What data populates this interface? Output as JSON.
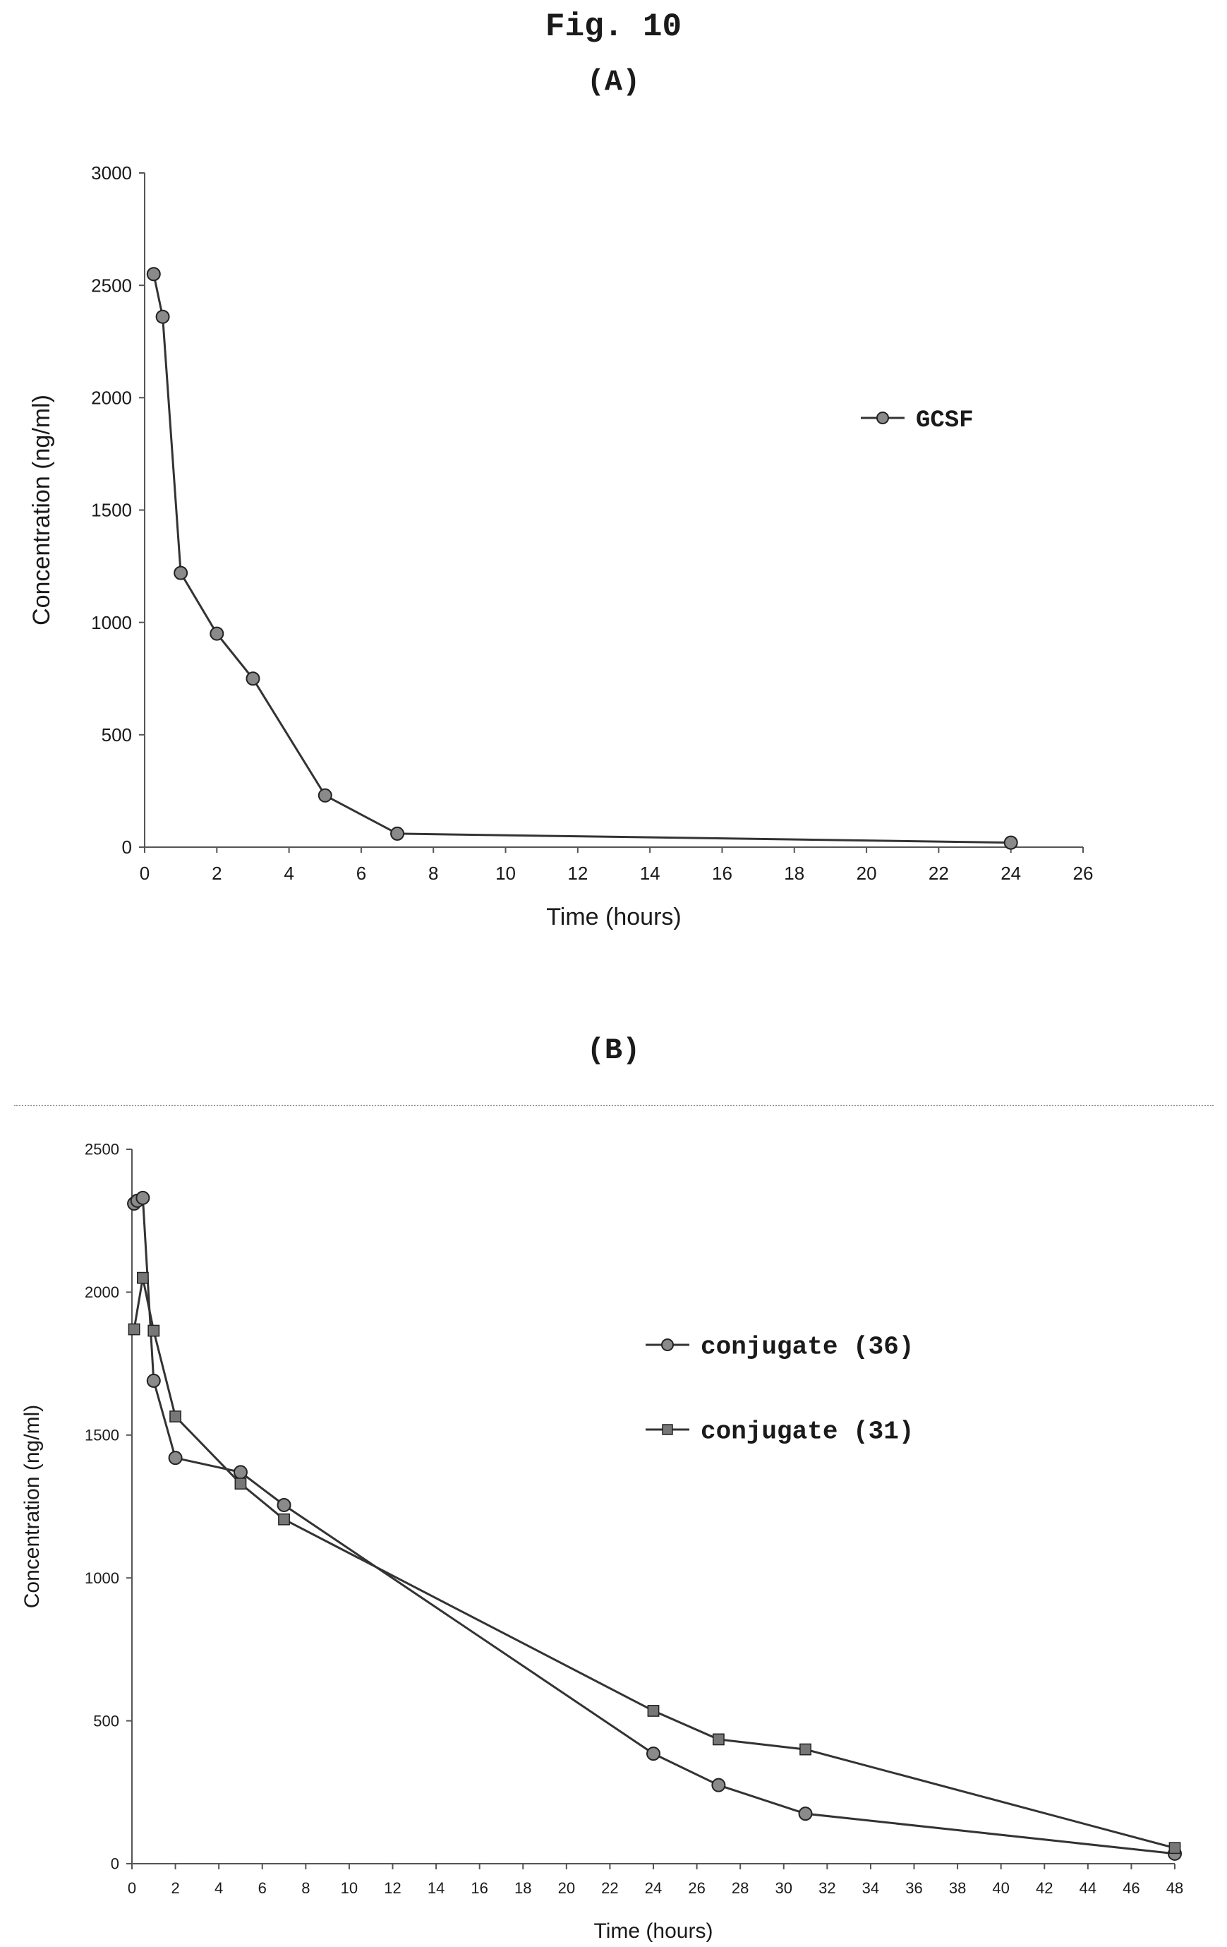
{
  "figure": {
    "title": "Fig. 10"
  },
  "chart_data": [
    {
      "panel": "(A)",
      "type": "line",
      "xlabel": "Time (hours)",
      "ylabel": "Concentration (ng/ml)",
      "xlim": [
        0,
        26
      ],
      "ylim": [
        0,
        3000
      ],
      "xticks": [
        0,
        2,
        4,
        6,
        8,
        10,
        12,
        14,
        16,
        18,
        20,
        22,
        24,
        26
      ],
      "yticks": [
        0,
        500,
        1000,
        1500,
        2000,
        2500,
        3000
      ],
      "legend_position": "right",
      "series": [
        {
          "name": "GCSF",
          "marker": "circle",
          "color": "#333333",
          "x": [
            0.25,
            0.5,
            1,
            2,
            3,
            5,
            7,
            24
          ],
          "y": [
            2550,
            2360,
            1220,
            950,
            750,
            230,
            60,
            20
          ]
        }
      ]
    },
    {
      "panel": "(B)",
      "type": "line",
      "xlabel": "Time (hours)",
      "ylabel": "Concentration (ng/ml)",
      "xlim": [
        0,
        48
      ],
      "ylim": [
        0,
        2500
      ],
      "xticks": [
        0,
        2,
        4,
        6,
        8,
        10,
        12,
        14,
        16,
        18,
        20,
        22,
        24,
        26,
        28,
        30,
        32,
        34,
        36,
        38,
        40,
        42,
        44,
        46,
        48
      ],
      "yticks": [
        0,
        500,
        1000,
        1500,
        2000,
        2500
      ],
      "legend_position": "right",
      "series": [
        {
          "name": "conjugate (36)",
          "marker": "circle",
          "color": "#333333",
          "x": [
            0.1,
            0.25,
            0.5,
            1,
            2,
            5,
            7,
            24,
            27,
            31,
            48
          ],
          "y": [
            2310,
            2320,
            2330,
            1690,
            1420,
            1370,
            1255,
            385,
            275,
            175,
            35
          ]
        },
        {
          "name": "conjugate (31)",
          "marker": "square",
          "color": "#333333",
          "x": [
            0.1,
            0.5,
            1,
            2,
            5,
            7,
            24,
            27,
            31,
            48
          ],
          "y": [
            1870,
            2050,
            1865,
            1565,
            1330,
            1205,
            535,
            435,
            400,
            55
          ]
        }
      ]
    }
  ]
}
